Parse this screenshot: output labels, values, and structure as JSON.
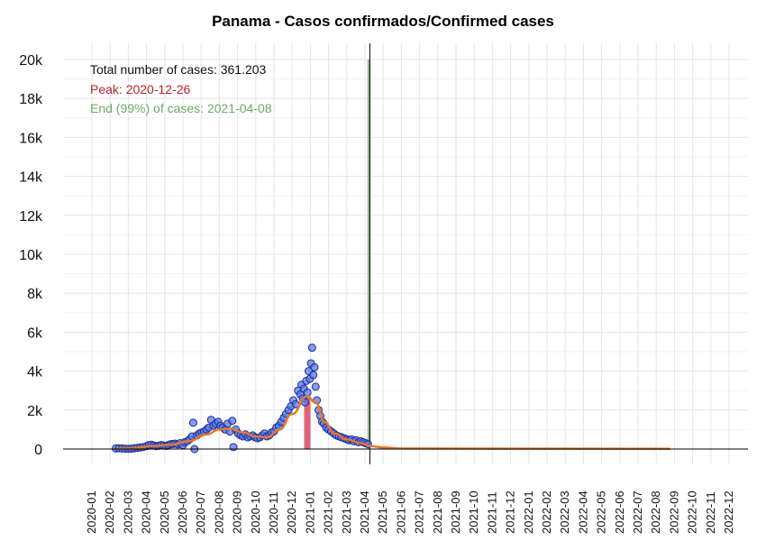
{
  "chart_data": {
    "type": "scatter",
    "title": "Panama - Casos confirmados/Confirmed cases",
    "xlabel": "",
    "ylabel": "",
    "ylim": [
      0,
      20000
    ],
    "y_ticks": [
      0,
      2000,
      4000,
      6000,
      8000,
      10000,
      12000,
      14000,
      16000,
      18000,
      20000
    ],
    "y_tick_labels": [
      "0",
      "2k",
      "4k",
      "6k",
      "8k",
      "10k",
      "12k",
      "14k",
      "16k",
      "18k",
      "20k"
    ],
    "x_tick_labels": [
      "2020-01",
      "2020-02",
      "2020-03",
      "2020-04",
      "2020-05",
      "2020-06",
      "2020-07",
      "2020-08",
      "2020-09",
      "2020-10",
      "2020-11",
      "2020-12",
      "2021-01",
      "2021-02",
      "2021-03",
      "2021-04",
      "2021-05",
      "2021-06",
      "2021-07",
      "2021-08",
      "2021-09",
      "2021-10",
      "2021-11",
      "2021-12",
      "2022-01",
      "2022-02",
      "2022-03",
      "2022-04",
      "2022-05",
      "2022-06",
      "2022-07",
      "2022-08",
      "2022-09",
      "2022-10",
      "2022-11",
      "2022-12"
    ],
    "grid": true,
    "annotations": {
      "total": "Total number of cases: 361.203",
      "peak": "Peak: 2020-12-26",
      "end": "End (99%) of cases: 2021-04-08"
    },
    "vertical_lines": {
      "current_date": "2021-04-09",
      "end_date": "2021-04-08"
    },
    "peak": {
      "date": "2020-12-26",
      "value": 2700
    },
    "series": [
      {
        "type": "scatter",
        "points": [
          [
            "2020-02-10",
            30
          ],
          [
            "2020-02-15",
            40
          ],
          [
            "2020-02-20",
            30
          ],
          [
            "2020-02-25",
            20
          ],
          [
            "2020-03-01",
            10
          ],
          [
            "2020-03-06",
            20
          ],
          [
            "2020-03-11",
            40
          ],
          [
            "2020-03-16",
            60
          ],
          [
            "2020-03-21",
            80
          ],
          [
            "2020-03-26",
            100
          ],
          [
            "2020-04-01",
            150
          ],
          [
            "2020-04-05",
            200
          ],
          [
            "2020-04-09",
            220
          ],
          [
            "2020-04-13",
            180
          ],
          [
            "2020-04-17",
            150
          ],
          [
            "2020-04-21",
            170
          ],
          [
            "2020-04-25",
            200
          ],
          [
            "2020-04-29",
            180
          ],
          [
            "2020-05-03",
            160
          ],
          [
            "2020-05-07",
            200
          ],
          [
            "2020-05-11",
            250
          ],
          [
            "2020-05-15",
            260
          ],
          [
            "2020-05-19",
            280
          ],
          [
            "2020-05-23",
            240
          ],
          [
            "2020-05-27",
            300
          ],
          [
            "2020-06-01",
            200
          ],
          [
            "2020-06-04",
            350
          ],
          [
            "2020-06-08",
            400
          ],
          [
            "2020-06-12",
            500
          ],
          [
            "2020-06-16",
            650
          ],
          [
            "2020-06-18",
            1350
          ],
          [
            "2020-06-20",
            0
          ],
          [
            "2020-06-24",
            700
          ],
          [
            "2020-06-28",
            800
          ],
          [
            "2020-07-02",
            850
          ],
          [
            "2020-07-06",
            900
          ],
          [
            "2020-07-10",
            1000
          ],
          [
            "2020-07-14",
            1100
          ],
          [
            "2020-07-18",
            1500
          ],
          [
            "2020-07-22",
            1200
          ],
          [
            "2020-07-26",
            1300
          ],
          [
            "2020-07-30",
            1400
          ],
          [
            "2020-08-03",
            1200
          ],
          [
            "2020-08-07",
            1100
          ],
          [
            "2020-08-11",
            1000
          ],
          [
            "2020-08-15",
            1300
          ],
          [
            "2020-08-19",
            900
          ],
          [
            "2020-08-23",
            1450
          ],
          [
            "2020-08-25",
            100
          ],
          [
            "2020-08-29",
            1000
          ],
          [
            "2020-09-02",
            800
          ],
          [
            "2020-09-06",
            700
          ],
          [
            "2020-09-10",
            650
          ],
          [
            "2020-09-14",
            750
          ],
          [
            "2020-09-18",
            600
          ],
          [
            "2020-09-22",
            650
          ],
          [
            "2020-09-26",
            700
          ],
          [
            "2020-09-30",
            600
          ],
          [
            "2020-10-04",
            550
          ],
          [
            "2020-10-08",
            600
          ],
          [
            "2020-10-12",
            700
          ],
          [
            "2020-10-16",
            800
          ],
          [
            "2020-10-20",
            650
          ],
          [
            "2020-10-24",
            700
          ],
          [
            "2020-10-28",
            850
          ],
          [
            "2020-11-01",
            900
          ],
          [
            "2020-11-05",
            1100
          ],
          [
            "2020-11-09",
            1200
          ],
          [
            "2020-11-13",
            1400
          ],
          [
            "2020-11-17",
            1600
          ],
          [
            "2020-11-21",
            1800
          ],
          [
            "2020-11-25",
            2000
          ],
          [
            "2020-11-29",
            2200
          ],
          [
            "2020-12-03",
            2500
          ],
          [
            "2020-12-07",
            2300
          ],
          [
            "2020-12-11",
            3000
          ],
          [
            "2020-12-15",
            2800
          ],
          [
            "2020-12-17",
            3300
          ],
          [
            "2020-12-19",
            2600
          ],
          [
            "2020-12-21",
            3100
          ],
          [
            "2020-12-23",
            2400
          ],
          [
            "2020-12-25",
            3500
          ],
          [
            "2020-12-27",
            2900
          ],
          [
            "2020-12-29",
            4000
          ],
          [
            "2020-12-31",
            3600
          ],
          [
            "2021-01-02",
            4400
          ],
          [
            "2021-01-04",
            5200
          ],
          [
            "2021-01-06",
            3800
          ],
          [
            "2021-01-08",
            4200
          ],
          [
            "2021-01-10",
            3200
          ],
          [
            "2021-01-12",
            2500
          ],
          [
            "2021-01-15",
            2000
          ],
          [
            "2021-01-18",
            1700
          ],
          [
            "2021-01-21",
            1400
          ],
          [
            "2021-01-24",
            1300
          ],
          [
            "2021-01-28",
            1100
          ],
          [
            "2021-02-01",
            1000
          ],
          [
            "2021-02-05",
            900
          ],
          [
            "2021-02-09",
            800
          ],
          [
            "2021-02-13",
            700
          ],
          [
            "2021-02-17",
            650
          ],
          [
            "2021-02-21",
            600
          ],
          [
            "2021-02-25",
            550
          ],
          [
            "2021-03-01",
            500
          ],
          [
            "2021-03-05",
            450
          ],
          [
            "2021-03-09",
            500
          ],
          [
            "2021-03-13",
            400
          ],
          [
            "2021-03-17",
            450
          ],
          [
            "2021-03-21",
            350
          ],
          [
            "2021-03-25",
            400
          ],
          [
            "2021-03-29",
            350
          ],
          [
            "2021-04-02",
            300
          ],
          [
            "2021-04-06",
            250
          ]
        ]
      },
      {
        "type": "line",
        "points": [
          [
            "2020-02-10",
            20
          ],
          [
            "2020-03-10",
            50
          ],
          [
            "2020-04-10",
            150
          ],
          [
            "2020-05-10",
            220
          ],
          [
            "2020-06-10",
            400
          ],
          [
            "2020-07-10",
            750
          ],
          [
            "2020-08-01",
            1000
          ],
          [
            "2020-08-20",
            1050
          ],
          [
            "2020-09-10",
            850
          ],
          [
            "2020-10-01",
            650
          ],
          [
            "2020-10-20",
            600
          ],
          [
            "2020-11-10",
            1000
          ],
          [
            "2020-12-01",
            1800
          ],
          [
            "2020-12-26",
            2700
          ],
          [
            "2021-01-10",
            2400
          ],
          [
            "2021-01-25",
            1400
          ],
          [
            "2021-02-10",
            800
          ],
          [
            "2021-03-01",
            500
          ],
          [
            "2021-03-25",
            300
          ],
          [
            "2021-04-10",
            150
          ],
          [
            "2021-05-01",
            80
          ],
          [
            "2021-06-01",
            30
          ],
          [
            "2022-08-25",
            10
          ]
        ]
      }
    ],
    "colors": {
      "points_fill": "#5b79e6",
      "points_stroke": "#1a2a9e",
      "fit_line": "#e87722",
      "peak_bar": "#d94860",
      "end_line": "#8fbf8f",
      "current_line": "#000000",
      "grid": "#e5e5e5"
    }
  }
}
